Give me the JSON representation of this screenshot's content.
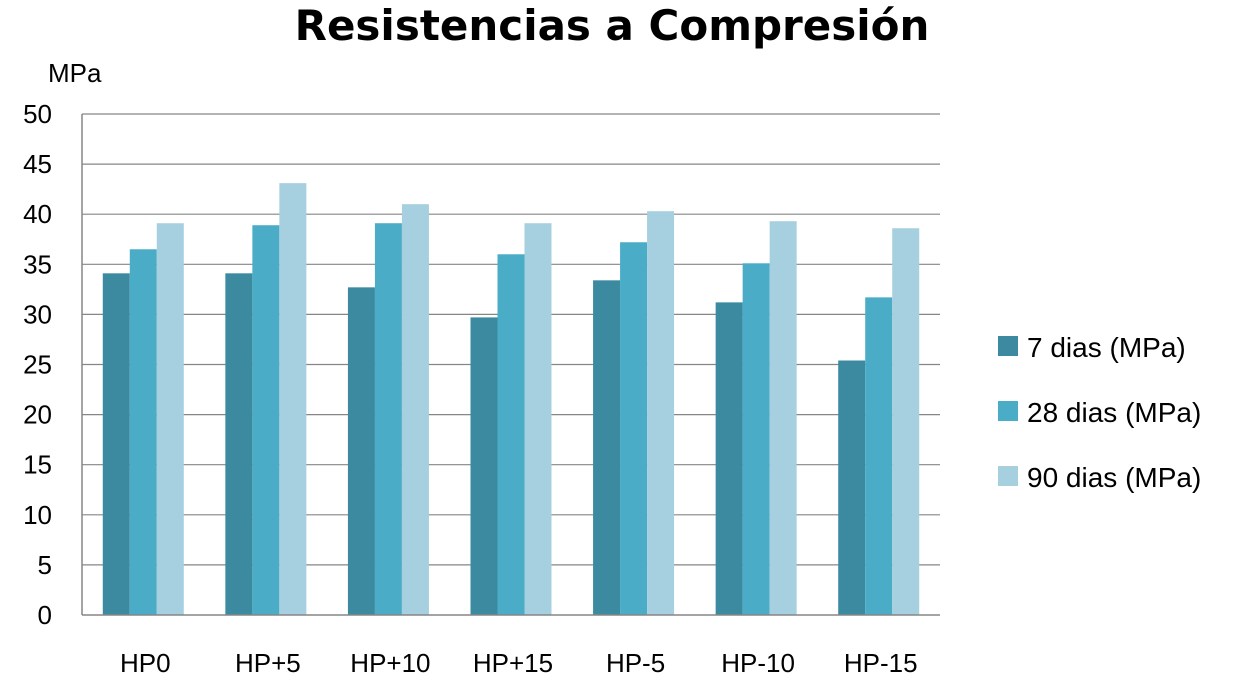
{
  "chart_data": {
    "type": "bar",
    "title": "Resistencias a Compresión",
    "ylabel": "MPa",
    "xlabel": "",
    "categories": [
      "HP0",
      "HP+5",
      "HP+10",
      "HP+15",
      "HP-5",
      "HP-10",
      "HP-15"
    ],
    "series": [
      {
        "name": "7 dias (MPa)",
        "color": "#3b8aa0",
        "values": [
          34.1,
          34.1,
          32.7,
          29.7,
          33.4,
          31.2,
          25.4
        ]
      },
      {
        "name": "28 dias (MPa)",
        "color": "#4aacc6",
        "values": [
          36.5,
          38.9,
          39.1,
          36.0,
          37.2,
          35.1,
          31.7
        ]
      },
      {
        "name": "90 dias (MPa)",
        "color": "#a6cfdf",
        "values": [
          39.1,
          43.1,
          41.0,
          39.1,
          40.3,
          39.3,
          38.6
        ]
      }
    ],
    "ylim": [
      0,
      50
    ],
    "yticks": [
      0,
      5,
      10,
      15,
      20,
      25,
      30,
      35,
      40,
      45,
      50
    ],
    "grid": true,
    "legend_position": "right"
  }
}
